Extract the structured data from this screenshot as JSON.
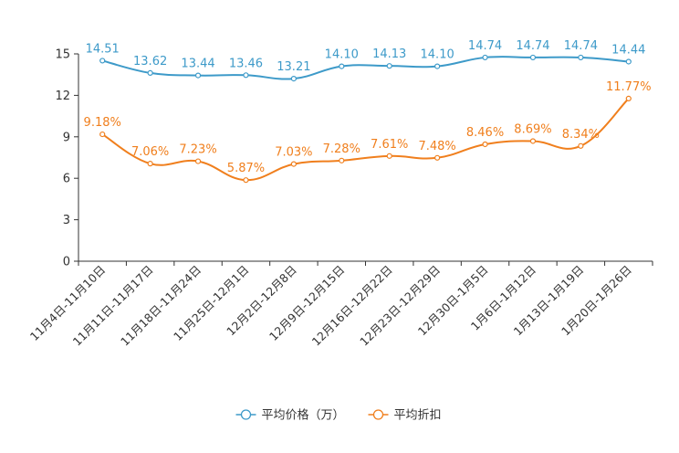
{
  "chart_data": {
    "type": "line",
    "title": "",
    "xlabel": "",
    "ylabel": "",
    "ylim": [
      0,
      15
    ],
    "yticks": [
      0,
      3,
      6,
      9,
      12,
      15
    ],
    "categories": [
      "11月4日-11月10日",
      "11月11日-11月17日",
      "11月18日-11月24日",
      "11月25日-12月1日",
      "12月2日-12月8日",
      "12月9日-12月15日",
      "12月16日-12月22日",
      "12月23日-12月29日",
      "12月30日-1月5日",
      "1月6日-1月12日",
      "1月13日-1月19日",
      "1月20日-1月26日"
    ],
    "legend_position": "bottom",
    "series": [
      {
        "name": "平均价格（万）",
        "color": "#3d9ac9",
        "values": [
          14.51,
          13.62,
          13.44,
          13.46,
          13.21,
          14.1,
          14.13,
          14.1,
          14.74,
          14.74,
          14.74,
          14.44
        ],
        "labels": [
          "14.51",
          "13.62",
          "13.44",
          "13.46",
          "13.21",
          "14.10",
          "14.13",
          "14.10",
          "14.74",
          "14.74",
          "14.74",
          "14.44"
        ]
      },
      {
        "name": "平均折扣",
        "color": "#f07f1d",
        "values": [
          9.18,
          7.06,
          7.23,
          5.87,
          7.03,
          7.28,
          7.61,
          7.48,
          8.46,
          8.69,
          8.34,
          11.77
        ],
        "labels": [
          "9.18%",
          "7.06%",
          "7.23%",
          "5.87%",
          "7.03%",
          "7.28%",
          "7.61%",
          "7.48%",
          "8.46%",
          "8.69%",
          "8.34%",
          "11.77%"
        ]
      }
    ]
  }
}
